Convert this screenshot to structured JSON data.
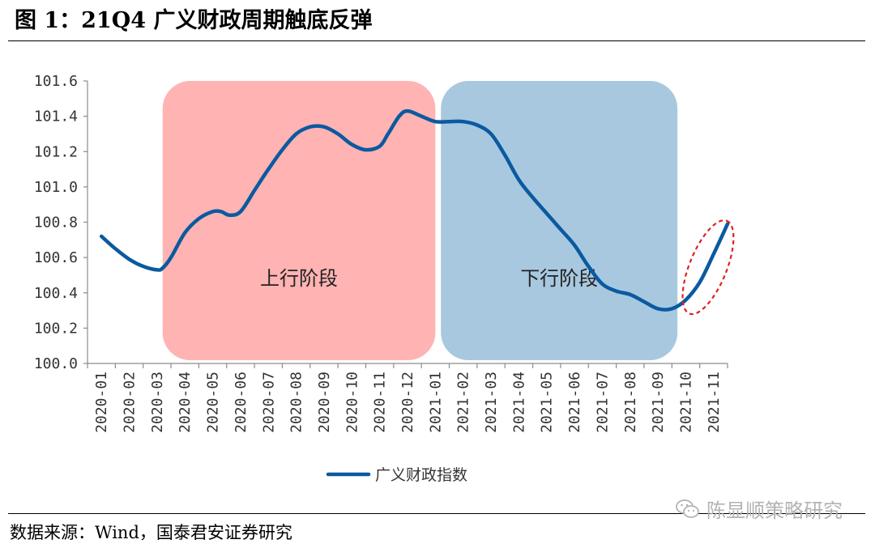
{
  "header": {
    "title": "图 1：21Q4 广义财政周期触底反弹"
  },
  "footer": {
    "source": "数据来源：Wind，国泰君安证券研究",
    "watermark": "陈显顺策略研究"
  },
  "chart_data": {
    "type": "line",
    "title": "",
    "xlabel": "",
    "ylabel": "",
    "ylim": [
      100.0,
      101.6
    ],
    "yticks": [
      "100.0",
      "100.2",
      "100.4",
      "100.6",
      "100.8",
      "101.0",
      "101.2",
      "101.4",
      "101.6"
    ],
    "categories": [
      "2020-01",
      "2020-02",
      "2020-03",
      "2020-04",
      "2020-05",
      "2020-06",
      "2020-07",
      "2020-08",
      "2020-09",
      "2020-10",
      "2020-11",
      "2020-12",
      "2021-01",
      "2021-02",
      "2021-03",
      "2021-04",
      "2021-05",
      "2021-06",
      "2021-07",
      "2021-08",
      "2021-09",
      "2021-10",
      "2021-11"
    ],
    "legend_position": "bottom-center",
    "grid": false,
    "series": [
      {
        "name": "广义财政指数",
        "color": "#0a5aa0",
        "points": [
          [
            0,
            100.72
          ],
          [
            0.5,
            100.65
          ],
          [
            1,
            100.59
          ],
          [
            1.5,
            100.55
          ],
          [
            2,
            100.53
          ],
          [
            2.2,
            100.54
          ],
          [
            2.5,
            100.6
          ],
          [
            3,
            100.74
          ],
          [
            3.5,
            100.82
          ],
          [
            4,
            100.86
          ],
          [
            4.3,
            100.86
          ],
          [
            4.6,
            100.84
          ],
          [
            5,
            100.86
          ],
          [
            5.5,
            100.98
          ],
          [
            6,
            101.1
          ],
          [
            6.5,
            101.21
          ],
          [
            7,
            101.3
          ],
          [
            7.5,
            101.34
          ],
          [
            8,
            101.34
          ],
          [
            8.5,
            101.3
          ],
          [
            9,
            101.24
          ],
          [
            9.5,
            101.21
          ],
          [
            10,
            101.23
          ],
          [
            10.3,
            101.3
          ],
          [
            10.7,
            101.4
          ],
          [
            11,
            101.43
          ],
          [
            11.5,
            101.4
          ],
          [
            12,
            101.37
          ],
          [
            12.5,
            101.37
          ],
          [
            13,
            101.37
          ],
          [
            13.5,
            101.35
          ],
          [
            14,
            101.3
          ],
          [
            14.5,
            101.18
          ],
          [
            15,
            101.04
          ],
          [
            15.5,
            100.94
          ],
          [
            16,
            100.85
          ],
          [
            16.5,
            100.76
          ],
          [
            17,
            100.67
          ],
          [
            17.5,
            100.55
          ],
          [
            18,
            100.45
          ],
          [
            18.5,
            100.41
          ],
          [
            19,
            100.39
          ],
          [
            19.5,
            100.35
          ],
          [
            20,
            100.31
          ],
          [
            20.5,
            100.31
          ],
          [
            21,
            100.36
          ],
          [
            21.5,
            100.46
          ],
          [
            22,
            100.62
          ],
          [
            22.5,
            100.79
          ]
        ]
      }
    ],
    "regions": [
      {
        "label": "上行阶段",
        "x_start": 2.2,
        "x_end": 12.0,
        "color": "#ffb3b3"
      },
      {
        "label": "下行阶段",
        "x_start": 12.2,
        "x_end": 20.7,
        "color": "#a8c8e0"
      }
    ],
    "highlight": {
      "x_start": 20.9,
      "x_end": 22.7,
      "y_min": 100.28,
      "y_max": 100.81,
      "color": "#dd2222"
    }
  }
}
